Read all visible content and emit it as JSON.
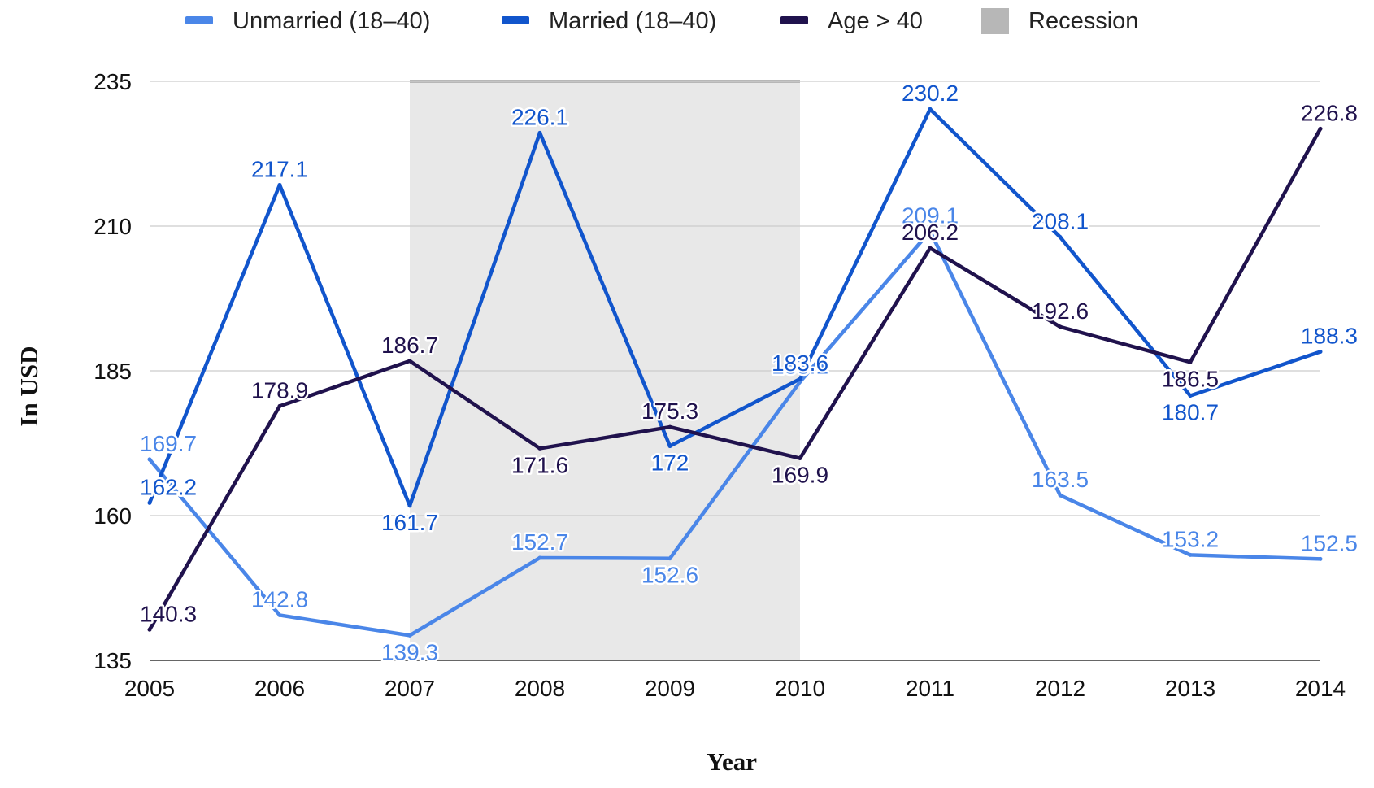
{
  "chart_data": {
    "type": "line",
    "x": [
      "2005",
      "2006",
      "2007",
      "2008",
      "2009",
      "2010",
      "2011",
      "2012",
      "2013",
      "2014"
    ],
    "series": [
      {
        "name": "Unmarried (18–40)",
        "color": "#4a86e8",
        "values": [
          169.7,
          142.8,
          139.3,
          152.7,
          152.6,
          183.1,
          209.1,
          163.5,
          153.2,
          152.5
        ]
      },
      {
        "name": "Married (18–40)",
        "color": "#1155cc",
        "values": [
          162.2,
          217.1,
          161.7,
          226.1,
          172,
          183.6,
          230.2,
          208.1,
          180.7,
          188.3
        ]
      },
      {
        "name": "Age > 40",
        "color": "#20124d",
        "values": [
          140.3,
          178.9,
          186.7,
          171.6,
          175.3,
          169.9,
          206.2,
          192.6,
          186.5,
          226.8
        ]
      }
    ],
    "recession": {
      "name": "Recession",
      "color": "#b7b7b7",
      "fill": "#e8e8e8",
      "start": "2007",
      "end": "2010"
    },
    "ylim": [
      135,
      235
    ],
    "yticks": [
      135,
      160,
      185,
      210,
      235
    ],
    "xlabel": "Year",
    "ylabel": "In USD",
    "grid": true,
    "legend": "top"
  }
}
